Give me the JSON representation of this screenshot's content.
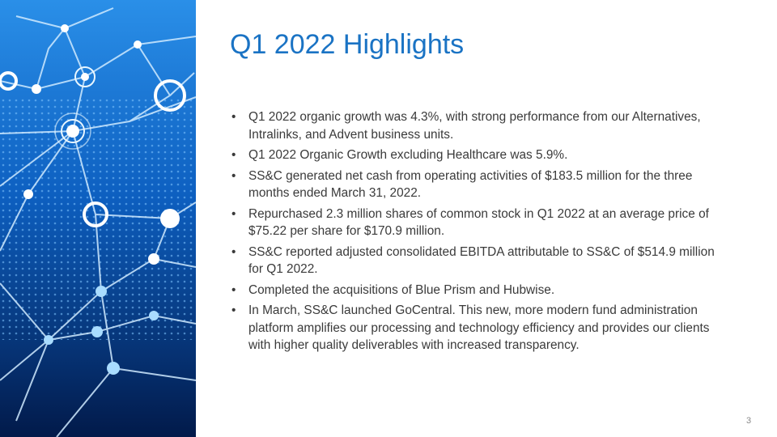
{
  "slide": {
    "title": "Q1 2022 Highlights",
    "bullets": [
      "Q1 2022 organic growth was 4.3%, with strong performance from our Alternatives, Intralinks, and Advent business units.",
      "Q1 2022 Organic Growth excluding Healthcare was 5.9%.",
      "SS&C generated net cash from operating activities of $183.5 million for the three months ended March 31, 2022.",
      "Repurchased 2.3 million shares of common stock in Q1 2022 at an average price of $75.22 per share for $170.9 million.",
      "SS&C reported adjusted consolidated EBITDA attributable to SS&C of $514.9 million for Q1 2022.",
      "Completed the acquisitions of Blue Prism and Hubwise.",
      "In March, SS&C launched GoCentral. This new, more modern fund administration platform amplifies our processing and technology efficiency and provides our clients with higher quality deliverables with increased transparency."
    ],
    "page_number": "3"
  }
}
